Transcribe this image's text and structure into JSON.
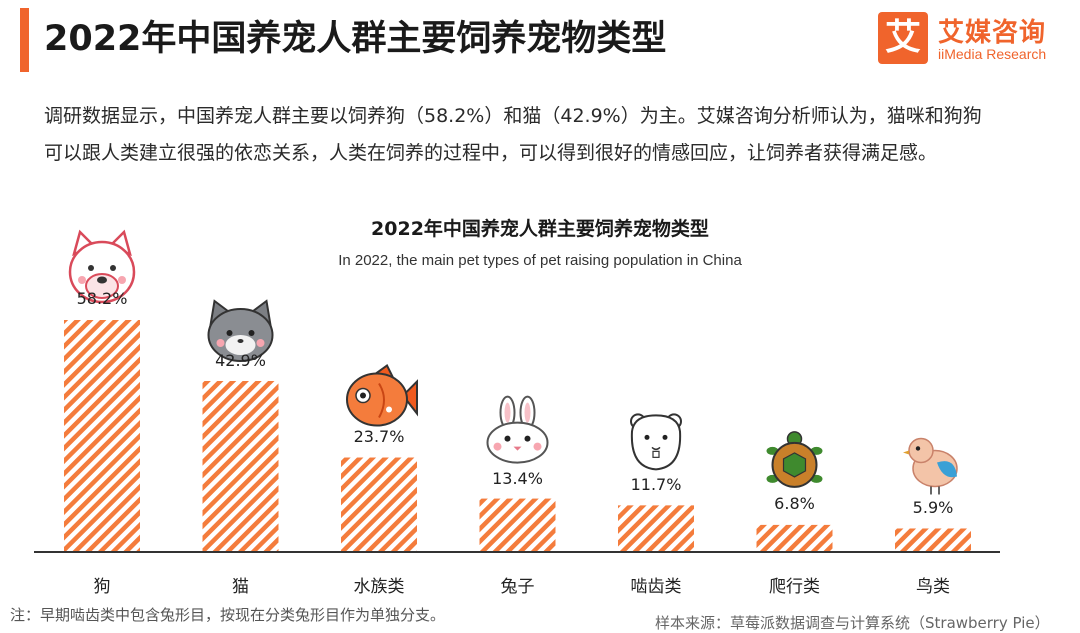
{
  "header": {
    "title": "2022年中国养宠人群主要饲养宠物类型",
    "logo_mark": "艾",
    "logo_cn": "艾媒咨询",
    "logo_en": "iiMedia Research"
  },
  "description": "调研数据显示，中国养宠人群主要以饲养狗（58.2%）和猫（42.9%）为主。艾媒咨询分析师认为，猫咪和狗狗可以跟人类建立很强的依恋关系，人类在饲养的过程中，可以得到很好的情感回应，让饲养者获得满足感。",
  "chart_data": {
    "type": "bar",
    "title": "2022年中国养宠人群主要饲养宠物类型",
    "subtitle": "In 2022, the main pet types of pet raising population in China",
    "categories": [
      "狗",
      "猫",
      "水族类",
      "兔子",
      "啮齿类",
      "爬行类",
      "鸟类"
    ],
    "values": [
      58.2,
      42.9,
      23.7,
      13.4,
      11.7,
      6.8,
      5.9
    ],
    "value_labels": [
      "58.2%",
      "42.9%",
      "23.7%",
      "13.4%",
      "11.7%",
      "6.8%",
      "5.9%"
    ],
    "icons": [
      "dog-icon",
      "cat-icon",
      "fish-icon",
      "rabbit-icon",
      "hamster-icon",
      "turtle-icon",
      "bird-icon"
    ],
    "unit": "%",
    "ylim": [
      0,
      58.2
    ],
    "grid": false,
    "legend": "none",
    "bar_color": "#f47c3c"
  },
  "footer": {
    "note": "注：早期啮齿类中包含兔形目，按现在分类兔形目作为单独分支。",
    "source": "样本来源：草莓派数据调查与计算系统（Strawberry Pie）"
  }
}
